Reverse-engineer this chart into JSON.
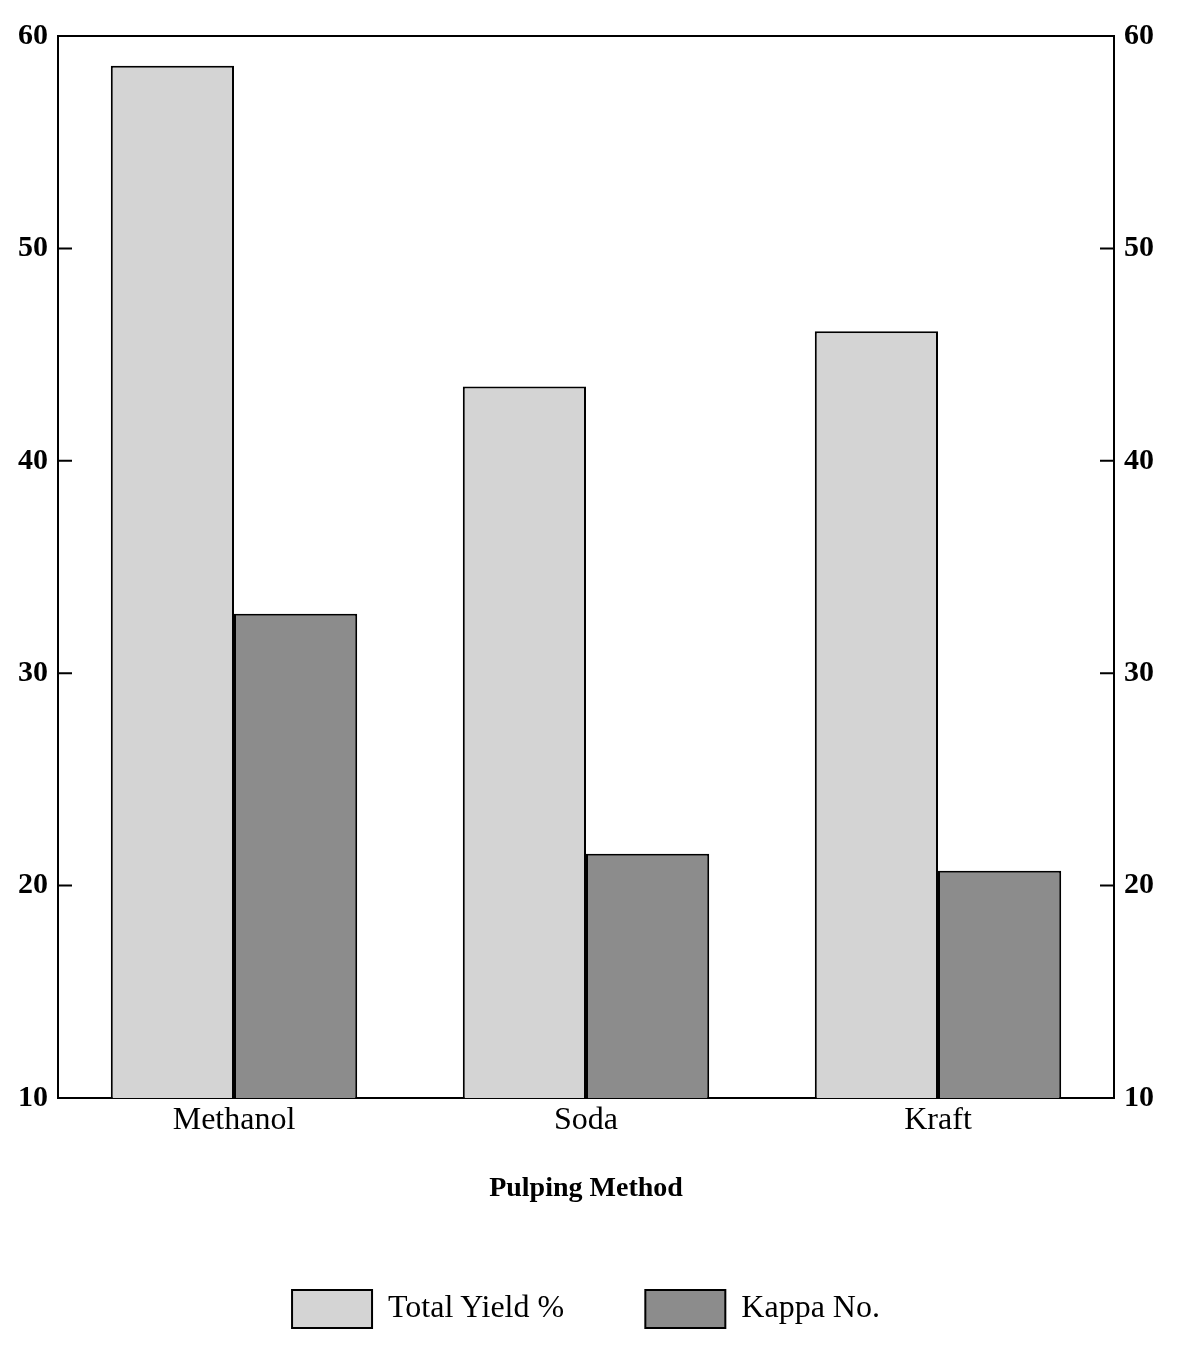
{
  "chart_data": {
    "type": "bar",
    "xlabel": "Pulping Method",
    "categories": [
      "Methanol",
      "Soda",
      "Kraft"
    ],
    "series": [
      {
        "name": "Total Yield %",
        "color": "#d4d4d4",
        "values": [
          58.6,
          43.5,
          46.1
        ]
      },
      {
        "name": "Kappa No.",
        "color": "#8c8c8c",
        "values": [
          32.8,
          21.5,
          20.7
        ]
      }
    ],
    "ylim": [
      10,
      60
    ],
    "yticks": [
      10,
      20,
      30,
      40,
      50,
      60
    ],
    "y2lim": [
      10,
      60
    ],
    "y2ticks": [
      10,
      20,
      30,
      40,
      50,
      60
    ],
    "grid": false,
    "legend": "bottom"
  }
}
